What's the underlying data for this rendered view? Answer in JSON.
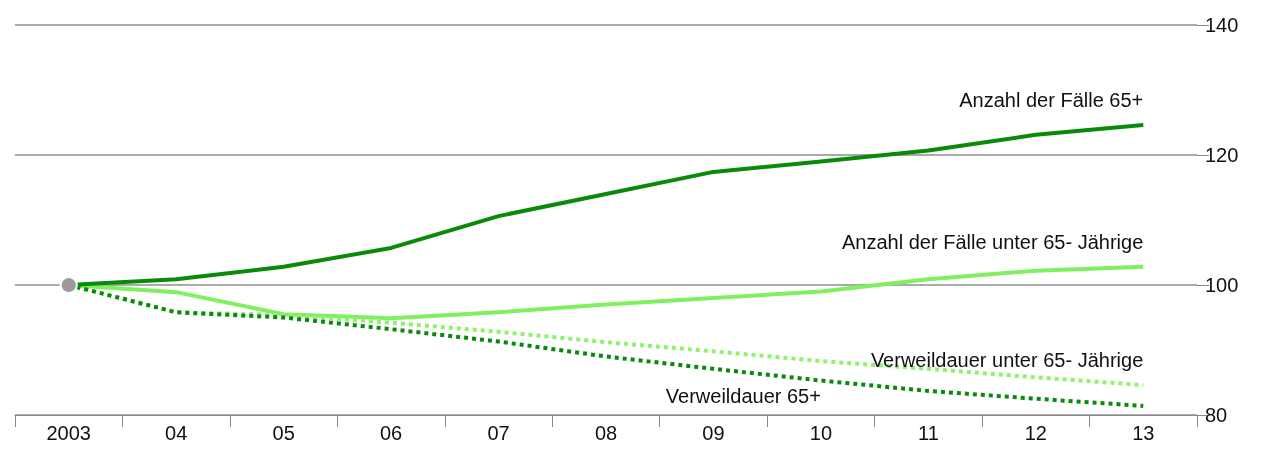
{
  "chart_data": {
    "type": "line",
    "categories": [
      "2003",
      "04",
      "05",
      "06",
      "07",
      "08",
      "09",
      "10",
      "11",
      "12",
      "13"
    ],
    "series": [
      {
        "name": "Anzahl der Fälle 65+",
        "color": "#0a8a0a",
        "line_style": "solid",
        "values": [
          100,
          100.9,
          102.8,
          105.7,
          110.6,
          114,
          117.4,
          119,
          120.7,
          123.1,
          124.6
        ]
      },
      {
        "name": "Anzahl der Fälle unter 65- Jährige",
        "color": "#80f060",
        "line_style": "solid",
        "values": [
          100,
          98.9,
          95.5,
          94.9,
          95.8,
          97,
          98,
          99,
          100.9,
          102.2,
          102.8
        ]
      },
      {
        "name": "Verweildauer unter 65- Jährige",
        "color": "#90f070",
        "line_style": "dotted",
        "values": [
          100,
          95.8,
          95.4,
          94.2,
          92.8,
          91.2,
          89.8,
          88.3,
          87.1,
          85.8,
          84.6
        ]
      },
      {
        "name": "Verweildauer 65+",
        "color": "#0a8a0a",
        "line_style": "dotted",
        "values": [
          100,
          95.8,
          95,
          93.2,
          91.3,
          89,
          87.1,
          85.3,
          83.7,
          82.5,
          81.4
        ]
      }
    ],
    "ylim": [
      80,
      140
    ],
    "yticks": [
      80,
      100,
      120,
      140
    ],
    "grid": "y",
    "legend": false
  }
}
